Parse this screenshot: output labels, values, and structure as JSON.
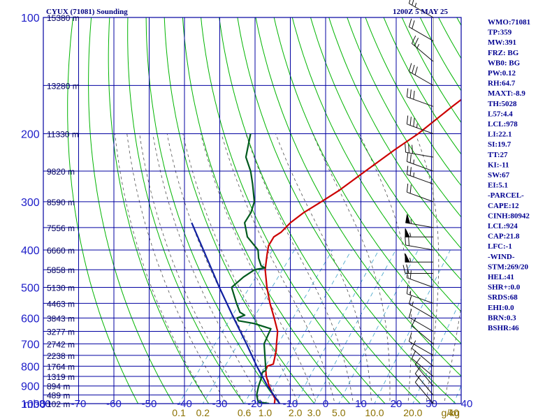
{
  "header": {
    "station": "CYUX (71081) Sounding",
    "time": "1200Z  5 MAY 25"
  },
  "indices": [
    "WMO:71081",
    "TP:359",
    "MW:391",
    "FRZ: BG",
    "WB0: BG",
    "PW:0.12",
    "RH:64.7",
    "MAXT:-8.9",
    "TH:5028",
    "L57:4.4",
    "LCL:978",
    "LI:22.1",
    "SI:19.7",
    "TT:27",
    "KI:-11",
    "SW:67",
    "EI:5.1",
    "-PARCEL-",
    "CAPE:12",
    "CINH:80942",
    "LCL:924",
    "CAP:21.8",
    "LFC:-1",
    "-WIND-",
    "STM:269/20",
    "HEL:41",
    "SHR+:0.0",
    "SRDS:68",
    "EHI:0.0",
    "BRN:0.3",
    "BSHR:46"
  ],
  "chart_data": {
    "type": "line",
    "title": "CYUX (71081) Sounding",
    "subtitle": "1200Z  5 MAY 25",
    "pressure_axis_label": "mb",
    "pressure_ticks": [
      100,
      200,
      300,
      400,
      500,
      600,
      700,
      800,
      900,
      1000
    ],
    "pressure_range": [
      1000,
      100
    ],
    "pressure_scale": "log",
    "temperature_ticks": [
      -80,
      -70,
      -60,
      -50,
      -40,
      -30,
      -20,
      -10,
      0,
      10,
      20,
      30,
      40
    ],
    "temperature_tick_labels": [
      "-80",
      "-70",
      "-60",
      "-50",
      "-40",
      "-30",
      "-20",
      "-10",
      "0",
      "10",
      "20",
      "30",
      "40"
    ],
    "mixing_ratio_labels": [
      {
        "label": "0.1",
        "value": 0.1
      },
      {
        "label": "0.2",
        "value": 0.2
      },
      {
        "label": "0.6",
        "value": 0.6
      },
      {
        "label": "1.0",
        "value": 1.0
      },
      {
        "label": "2.0",
        "value": 2.0
      },
      {
        "label": "3.0",
        "value": 3.0
      },
      {
        "label": "5.0",
        "value": 5.0
      },
      {
        "label": "10.0",
        "value": 10.0
      },
      {
        "label": "20.0",
        "value": 20.0
      },
      {
        "label": "40",
        "value": 40
      }
    ],
    "mixing_ratio_unit": "g/kg",
    "height_labels": [
      {
        "p": 100,
        "label": "15380 m"
      },
      {
        "p": 150,
        "label": "13280 m"
      },
      {
        "p": 200,
        "label": "11330 m"
      },
      {
        "p": 250,
        "label": "9820 m"
      },
      {
        "p": 300,
        "label": "8590 m"
      },
      {
        "p": 350,
        "label": "7556 m"
      },
      {
        "p": 400,
        "label": "6660 m"
      },
      {
        "p": 450,
        "label": "5858 m"
      },
      {
        "p": 500,
        "label": "5130 m"
      },
      {
        "p": 550,
        "label": "4463 m"
      },
      {
        "p": 600,
        "label": "3843 m"
      },
      {
        "p": 650,
        "label": "3277 m"
      },
      {
        "p": 700,
        "label": "2742 m"
      },
      {
        "p": 750,
        "label": "2238 m"
      },
      {
        "p": 800,
        "label": "1764 m"
      },
      {
        "p": 850,
        "label": "1319 m"
      },
      {
        "p": 900,
        "label": "894 m"
      },
      {
        "p": 950,
        "label": "489 m"
      },
      {
        "p": 1000,
        "label": "102 m"
      }
    ],
    "series": [
      {
        "color": "#cc0000",
        "points": [
          {
            "p": 1000,
            "t": -14.5
          },
          {
            "p": 970,
            "t": -15.5
          },
          {
            "p": 940,
            "t": -17.5
          },
          {
            "p": 900,
            "t": -20.0
          },
          {
            "p": 850,
            "t": -23.0
          },
          {
            "p": 820,
            "t": -24.5
          },
          {
            "p": 800,
            "t": -25.0
          },
          {
            "p": 790,
            "t": -23.8
          },
          {
            "p": 770,
            "t": -24.5
          },
          {
            "p": 730,
            "t": -26.0
          },
          {
            "p": 700,
            "t": -27.5
          },
          {
            "p": 650,
            "t": -30.0
          },
          {
            "p": 600,
            "t": -34.0
          },
          {
            "p": 550,
            "t": -38.5
          },
          {
            "p": 500,
            "t": -43.0
          },
          {
            "p": 450,
            "t": -47.5
          },
          {
            "p": 410,
            "t": -50.5
          },
          {
            "p": 390,
            "t": -52.0
          },
          {
            "p": 370,
            "t": -52.5
          },
          {
            "p": 360,
            "t": -51.5
          },
          {
            "p": 340,
            "t": -51.0
          },
          {
            "p": 320,
            "t": -49.5
          },
          {
            "p": 300,
            "t": -47.0
          },
          {
            "p": 280,
            "t": -44.5
          },
          {
            "p": 250,
            "t": -41.5
          },
          {
            "p": 220,
            "t": -38.0
          },
          {
            "p": 200,
            "t": -35.0
          },
          {
            "p": 170,
            "t": -31.5
          },
          {
            "p": 150,
            "t": -28.5
          },
          {
            "p": 130,
            "t": -31.0
          },
          {
            "p": 115,
            "t": -33.5
          },
          {
            "p": 100,
            "t": -35.0
          }
        ]
      },
      {
        "color": "#005a1e",
        "points": [
          {
            "p": 1000,
            "t": -16.0
          },
          {
            "p": 990,
            "t": -19.5
          },
          {
            "p": 950,
            "t": -21.5
          },
          {
            "p": 900,
            "t": -23.0
          },
          {
            "p": 860,
            "t": -24.0
          },
          {
            "p": 830,
            "t": -25.0
          },
          {
            "p": 820,
            "t": -24.5
          },
          {
            "p": 800,
            "t": -25.5
          },
          {
            "p": 700,
            "t": -31.0
          },
          {
            "p": 660,
            "t": -32.0
          },
          {
            "p": 640,
            "t": -32.5
          },
          {
            "p": 620,
            "t": -38.5
          },
          {
            "p": 610,
            "t": -43.5
          },
          {
            "p": 600,
            "t": -44.5
          },
          {
            "p": 590,
            "t": -43.0
          },
          {
            "p": 580,
            "t": -45.0
          },
          {
            "p": 550,
            "t": -48.0
          },
          {
            "p": 500,
            "t": -53.0
          },
          {
            "p": 470,
            "t": -52.0
          },
          {
            "p": 450,
            "t": -50.5
          },
          {
            "p": 445,
            "t": -48.0
          },
          {
            "p": 440,
            "t": -49.5
          },
          {
            "p": 420,
            "t": -52.0
          },
          {
            "p": 400,
            "t": -54.0
          },
          {
            "p": 370,
            "t": -60.0
          },
          {
            "p": 340,
            "t": -64.0
          },
          {
            "p": 320,
            "t": -64.5
          },
          {
            "p": 300,
            "t": -66.0
          },
          {
            "p": 270,
            "t": -70.5
          },
          {
            "p": 250,
            "t": -74.0
          },
          {
            "p": 230,
            "t": -78.5
          },
          {
            "p": 200,
            "t": -82.5
          }
        ]
      },
      {
        "color": "#1020a0",
        "points": [
          {
            "p": 1000,
            "t": -13.0
          },
          {
            "p": 900,
            "t": -20.5
          },
          {
            "p": 800,
            "t": -28.0
          },
          {
            "p": 700,
            "t": -36.0
          },
          {
            "p": 600,
            "t": -45.5
          },
          {
            "p": 500,
            "t": -56.5
          },
          {
            "p": 400,
            "t": -69.5
          },
          {
            "p": 340,
            "t": -79.0
          }
        ]
      }
    ],
    "wind_barbs": [
      {
        "p": 100,
        "dir": 300,
        "spd": 25
      },
      {
        "p": 115,
        "dir": 300,
        "spd": 20
      },
      {
        "p": 130,
        "dir": 310,
        "spd": 25
      },
      {
        "p": 150,
        "dir": 300,
        "spd": 30
      },
      {
        "p": 170,
        "dir": 290,
        "spd": 30
      },
      {
        "p": 200,
        "dir": 290,
        "spd": 35
      },
      {
        "p": 230,
        "dir": 280,
        "spd": 30
      },
      {
        "p": 250,
        "dir": 290,
        "spd": 25
      },
      {
        "p": 270,
        "dir": 290,
        "spd": 25
      },
      {
        "p": 300,
        "dir": 290,
        "spd": 20
      },
      {
        "p": 350,
        "dir": 280,
        "spd": 55
      },
      {
        "p": 370,
        "dir": 270,
        "spd": 55
      },
      {
        "p": 400,
        "dir": 280,
        "spd": 20
      },
      {
        "p": 430,
        "dir": 270,
        "spd": 55
      },
      {
        "p": 460,
        "dir": 270,
        "spd": 20
      },
      {
        "p": 500,
        "dir": 290,
        "spd": 20
      },
      {
        "p": 550,
        "dir": 290,
        "spd": 15
      },
      {
        "p": 600,
        "dir": 300,
        "spd": 15
      },
      {
        "p": 650,
        "dir": 300,
        "spd": 10
      },
      {
        "p": 700,
        "dir": 310,
        "spd": 10
      },
      {
        "p": 750,
        "dir": 300,
        "spd": 10
      },
      {
        "p": 800,
        "dir": 310,
        "spd": 10
      },
      {
        "p": 850,
        "dir": 310,
        "spd": 10
      },
      {
        "p": 900,
        "dir": 320,
        "spd": 10
      },
      {
        "p": 950,
        "dir": 320,
        "spd": 10
      },
      {
        "p": 1000,
        "dir": 320,
        "spd": 10
      }
    ],
    "colors": {
      "isotherm": "#0000a0",
      "dry_adiabat": "#00b400",
      "moist_adiabat": "#505050",
      "mixing_ratio": "#3ca0c8",
      "temperature": "#cc0000",
      "dewpoint": "#005a1e",
      "parcel": "#1020a0",
      "text": "#000090"
    }
  }
}
